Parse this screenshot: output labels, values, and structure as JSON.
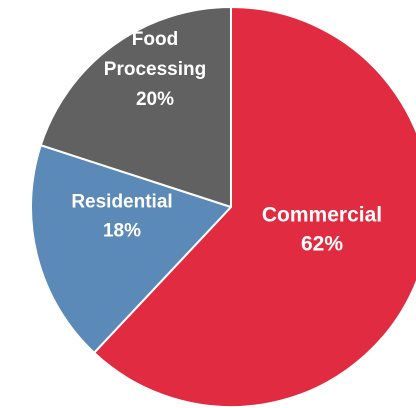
{
  "chart_data": {
    "type": "pie",
    "title": "",
    "start_angle_deg": 0,
    "direction": "clockwise",
    "slices": [
      {
        "category": "Commercial",
        "value": 62,
        "label_lines": [
          "Commercial",
          "62%"
        ],
        "color": "#e12b41"
      },
      {
        "category": "Residential",
        "value": 18,
        "label_lines": [
          "Residential",
          "18%"
        ],
        "color": "#5b8ab9"
      },
      {
        "category": "Food Processing",
        "value": 20,
        "label_lines": [
          "Food",
          "Processing",
          "20%"
        ],
        "color": "#616161"
      }
    ]
  }
}
